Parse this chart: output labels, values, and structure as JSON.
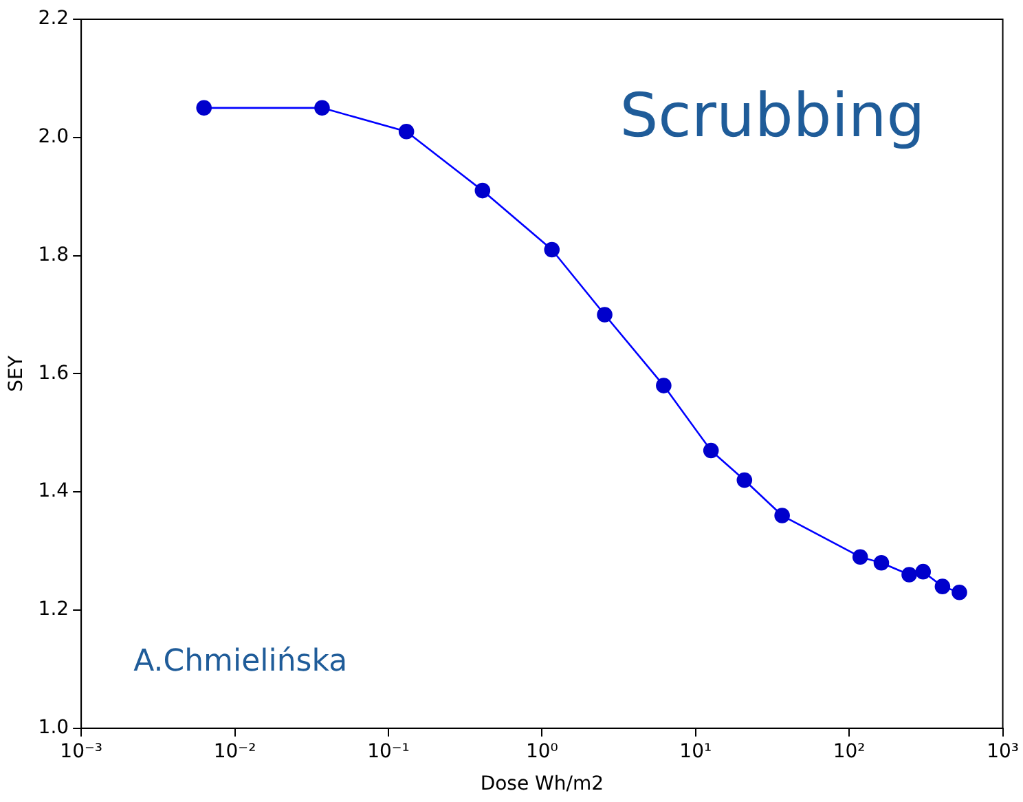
{
  "chart_data": {
    "type": "line",
    "xlabel": "Dose Wh/m2",
    "ylabel": "SEY",
    "log": "x",
    "marker": "circle",
    "line_style": "solid",
    "grid": false,
    "legend": false,
    "xlim": [
      0.001,
      1000
    ],
    "xticks": [
      {
        "value": 0.001,
        "label": "10⁻³"
      },
      {
        "value": 0.01,
        "label": "10⁻²"
      },
      {
        "value": 0.1,
        "label": "10⁻¹"
      },
      {
        "value": 1,
        "label": "10⁰"
      },
      {
        "value": 10,
        "label": "10¹"
      },
      {
        "value": 100,
        "label": "10²"
      },
      {
        "value": 1000,
        "label": "10³"
      }
    ],
    "ylim": [
      1.0,
      2.2
    ],
    "yticks": [
      {
        "value": 1.0,
        "label": "1.0"
      },
      {
        "value": 1.2,
        "label": "1.2"
      },
      {
        "value": 1.4,
        "label": "1.4"
      },
      {
        "value": 1.6,
        "label": "1.6"
      },
      {
        "value": 1.8,
        "label": "1.8"
      },
      {
        "value": 2.0,
        "label": "2.0"
      },
      {
        "value": 2.2,
        "label": "2.2"
      }
    ],
    "x": [
      0.0063,
      0.037,
      0.131,
      0.41,
      1.16,
      2.56,
      6.2,
      12.6,
      20.8,
      36.6,
      118,
      162,
      246,
      303,
      405,
      522
    ],
    "series": [
      {
        "color": "#0000ff",
        "values": [
          2.05,
          2.05,
          2.01,
          1.91,
          1.81,
          1.7,
          1.58,
          1.47,
          1.42,
          1.36,
          1.29,
          1.28,
          1.26,
          1.265,
          1.24,
          1.23
        ]
      }
    ],
    "annotations": [
      "Scrubbing",
      "A.Chmielińska"
    ]
  }
}
